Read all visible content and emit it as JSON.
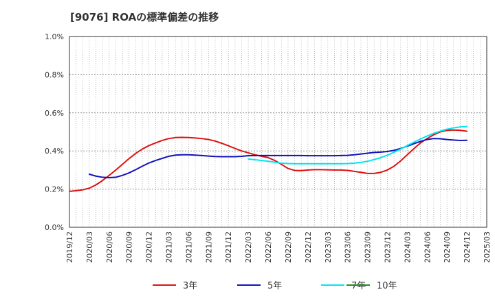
{
  "chart_data": {
    "type": "line",
    "title": "[9076]  ROAの標準偏差の推移",
    "xlabel": "",
    "ylabel": "",
    "ylim": [
      0,
      1.0
    ],
    "yticks": [
      0.0,
      0.2,
      0.4,
      0.6,
      0.8,
      1.0
    ],
    "ytick_labels": [
      "0.0%",
      "0.2%",
      "0.4%",
      "0.6%",
      "0.8%",
      "1.0%"
    ],
    "x_range": [
      "2019/12",
      "2025/03"
    ],
    "xtick_labels": [
      "2019/12",
      "2020/03",
      "2020/06",
      "2020/09",
      "2020/12",
      "2021/03",
      "2021/06",
      "2021/09",
      "2021/12",
      "2022/03",
      "2022/06",
      "2022/09",
      "2022/12",
      "2023/03",
      "2023/06",
      "2023/09",
      "2023/12",
      "2024/03",
      "2024/06",
      "2024/09",
      "2024/12",
      "2025/03"
    ],
    "grid": true,
    "legend_position": "bottom",
    "series": [
      {
        "name": "3年",
        "color": "#dd1111",
        "points": [
          [
            "2019/12",
            0.188
          ],
          [
            "2020/01",
            0.192
          ],
          [
            "2020/02",
            0.196
          ],
          [
            "2020/03",
            0.205
          ],
          [
            "2020/04",
            0.222
          ],
          [
            "2020/05",
            0.245
          ],
          [
            "2020/06",
            0.272
          ],
          [
            "2020/07",
            0.3
          ],
          [
            "2020/08",
            0.33
          ],
          [
            "2020/09",
            0.36
          ],
          [
            "2020/10",
            0.387
          ],
          [
            "2020/11",
            0.41
          ],
          [
            "2020/12",
            0.428
          ],
          [
            "2021/01",
            0.442
          ],
          [
            "2021/02",
            0.455
          ],
          [
            "2021/03",
            0.465
          ],
          [
            "2021/04",
            0.47
          ],
          [
            "2021/05",
            0.471
          ],
          [
            "2021/06",
            0.47
          ],
          [
            "2021/07",
            0.468
          ],
          [
            "2021/08",
            0.465
          ],
          [
            "2021/09",
            0.46
          ],
          [
            "2021/10",
            0.452
          ],
          [
            "2021/11",
            0.44
          ],
          [
            "2021/12",
            0.427
          ],
          [
            "2022/01",
            0.413
          ],
          [
            "2022/02",
            0.4
          ],
          [
            "2022/03",
            0.39
          ],
          [
            "2022/04",
            0.38
          ],
          [
            "2022/05",
            0.372
          ],
          [
            "2022/06",
            0.365
          ],
          [
            "2022/07",
            0.35
          ],
          [
            "2022/08",
            0.33
          ],
          [
            "2022/09",
            0.308
          ],
          [
            "2022/10",
            0.298
          ],
          [
            "2022/11",
            0.297
          ],
          [
            "2022/12",
            0.3
          ],
          [
            "2023/01",
            0.302
          ],
          [
            "2023/02",
            0.302
          ],
          [
            "2023/03",
            0.301
          ],
          [
            "2023/04",
            0.3
          ],
          [
            "2023/05",
            0.3
          ],
          [
            "2023/06",
            0.298
          ],
          [
            "2023/07",
            0.293
          ],
          [
            "2023/08",
            0.288
          ],
          [
            "2023/09",
            0.282
          ],
          [
            "2023/10",
            0.282
          ],
          [
            "2023/11",
            0.288
          ],
          [
            "2023/12",
            0.3
          ],
          [
            "2024/01",
            0.32
          ],
          [
            "2024/02",
            0.348
          ],
          [
            "2024/03",
            0.38
          ],
          [
            "2024/04",
            0.412
          ],
          [
            "2024/05",
            0.442
          ],
          [
            "2024/06",
            0.465
          ],
          [
            "2024/07",
            0.485
          ],
          [
            "2024/08",
            0.5
          ],
          [
            "2024/09",
            0.508
          ],
          [
            "2024/10",
            0.51
          ],
          [
            "2024/11",
            0.508
          ],
          [
            "2024/12",
            0.503
          ]
        ]
      },
      {
        "name": "5年",
        "color": "#1111bb",
        "points": [
          [
            "2020/03",
            0.278
          ],
          [
            "2020/04",
            0.268
          ],
          [
            "2020/05",
            0.262
          ],
          [
            "2020/06",
            0.26
          ],
          [
            "2020/07",
            0.262
          ],
          [
            "2020/08",
            0.272
          ],
          [
            "2020/09",
            0.285
          ],
          [
            "2020/10",
            0.302
          ],
          [
            "2020/11",
            0.32
          ],
          [
            "2020/12",
            0.337
          ],
          [
            "2021/01",
            0.35
          ],
          [
            "2021/02",
            0.361
          ],
          [
            "2021/03",
            0.372
          ],
          [
            "2021/04",
            0.378
          ],
          [
            "2021/05",
            0.38
          ],
          [
            "2021/06",
            0.38
          ],
          [
            "2021/07",
            0.378
          ],
          [
            "2021/08",
            0.376
          ],
          [
            "2021/09",
            0.373
          ],
          [
            "2021/10",
            0.371
          ],
          [
            "2021/11",
            0.37
          ],
          [
            "2021/12",
            0.37
          ],
          [
            "2022/01",
            0.37
          ],
          [
            "2022/02",
            0.372
          ],
          [
            "2022/03",
            0.375
          ],
          [
            "2022/04",
            0.376
          ],
          [
            "2022/05",
            0.376
          ],
          [
            "2022/06",
            0.376
          ],
          [
            "2022/07",
            0.376
          ],
          [
            "2022/08",
            0.376
          ],
          [
            "2022/09",
            0.376
          ],
          [
            "2022/10",
            0.376
          ],
          [
            "2022/11",
            0.376
          ],
          [
            "2022/12",
            0.375
          ],
          [
            "2023/01",
            0.375
          ],
          [
            "2023/02",
            0.375
          ],
          [
            "2023/03",
            0.375
          ],
          [
            "2023/04",
            0.375
          ],
          [
            "2023/05",
            0.376
          ],
          [
            "2023/06",
            0.377
          ],
          [
            "2023/07",
            0.38
          ],
          [
            "2023/08",
            0.384
          ],
          [
            "2023/09",
            0.388
          ],
          [
            "2023/10",
            0.392
          ],
          [
            "2023/11",
            0.394
          ],
          [
            "2023/12",
            0.397
          ],
          [
            "2024/01",
            0.403
          ],
          [
            "2024/02",
            0.413
          ],
          [
            "2024/03",
            0.425
          ],
          [
            "2024/04",
            0.438
          ],
          [
            "2024/05",
            0.45
          ],
          [
            "2024/06",
            0.46
          ],
          [
            "2024/07",
            0.465
          ],
          [
            "2024/08",
            0.464
          ],
          [
            "2024/09",
            0.46
          ],
          [
            "2024/10",
            0.457
          ],
          [
            "2024/11",
            0.455
          ],
          [
            "2024/12",
            0.456
          ]
        ]
      },
      {
        "name": "7年",
        "color": "#00e5ee",
        "points": [
          [
            "2022/03",
            0.358
          ],
          [
            "2022/04",
            0.354
          ],
          [
            "2022/05",
            0.35
          ],
          [
            "2022/06",
            0.346
          ],
          [
            "2022/07",
            0.341
          ],
          [
            "2022/08",
            0.336
          ],
          [
            "2022/09",
            0.334
          ],
          [
            "2022/10",
            0.333
          ],
          [
            "2022/11",
            0.333
          ],
          [
            "2022/12",
            0.333
          ],
          [
            "2023/01",
            0.333
          ],
          [
            "2023/02",
            0.333
          ],
          [
            "2023/03",
            0.333
          ],
          [
            "2023/04",
            0.333
          ],
          [
            "2023/05",
            0.333
          ],
          [
            "2023/06",
            0.334
          ],
          [
            "2023/07",
            0.336
          ],
          [
            "2023/08",
            0.34
          ],
          [
            "2023/09",
            0.346
          ],
          [
            "2023/10",
            0.355
          ],
          [
            "2023/11",
            0.365
          ],
          [
            "2023/12",
            0.378
          ],
          [
            "2024/01",
            0.393
          ],
          [
            "2024/02",
            0.41
          ],
          [
            "2024/03",
            0.428
          ],
          [
            "2024/04",
            0.446
          ],
          [
            "2024/05",
            0.463
          ],
          [
            "2024/06",
            0.478
          ],
          [
            "2024/07",
            0.492
          ],
          [
            "2024/08",
            0.504
          ],
          [
            "2024/09",
            0.514
          ],
          [
            "2024/10",
            0.521
          ],
          [
            "2024/11",
            0.526
          ],
          [
            "2024/12",
            0.528
          ]
        ]
      },
      {
        "name": "10年",
        "color": "#228b22",
        "points": []
      }
    ]
  }
}
